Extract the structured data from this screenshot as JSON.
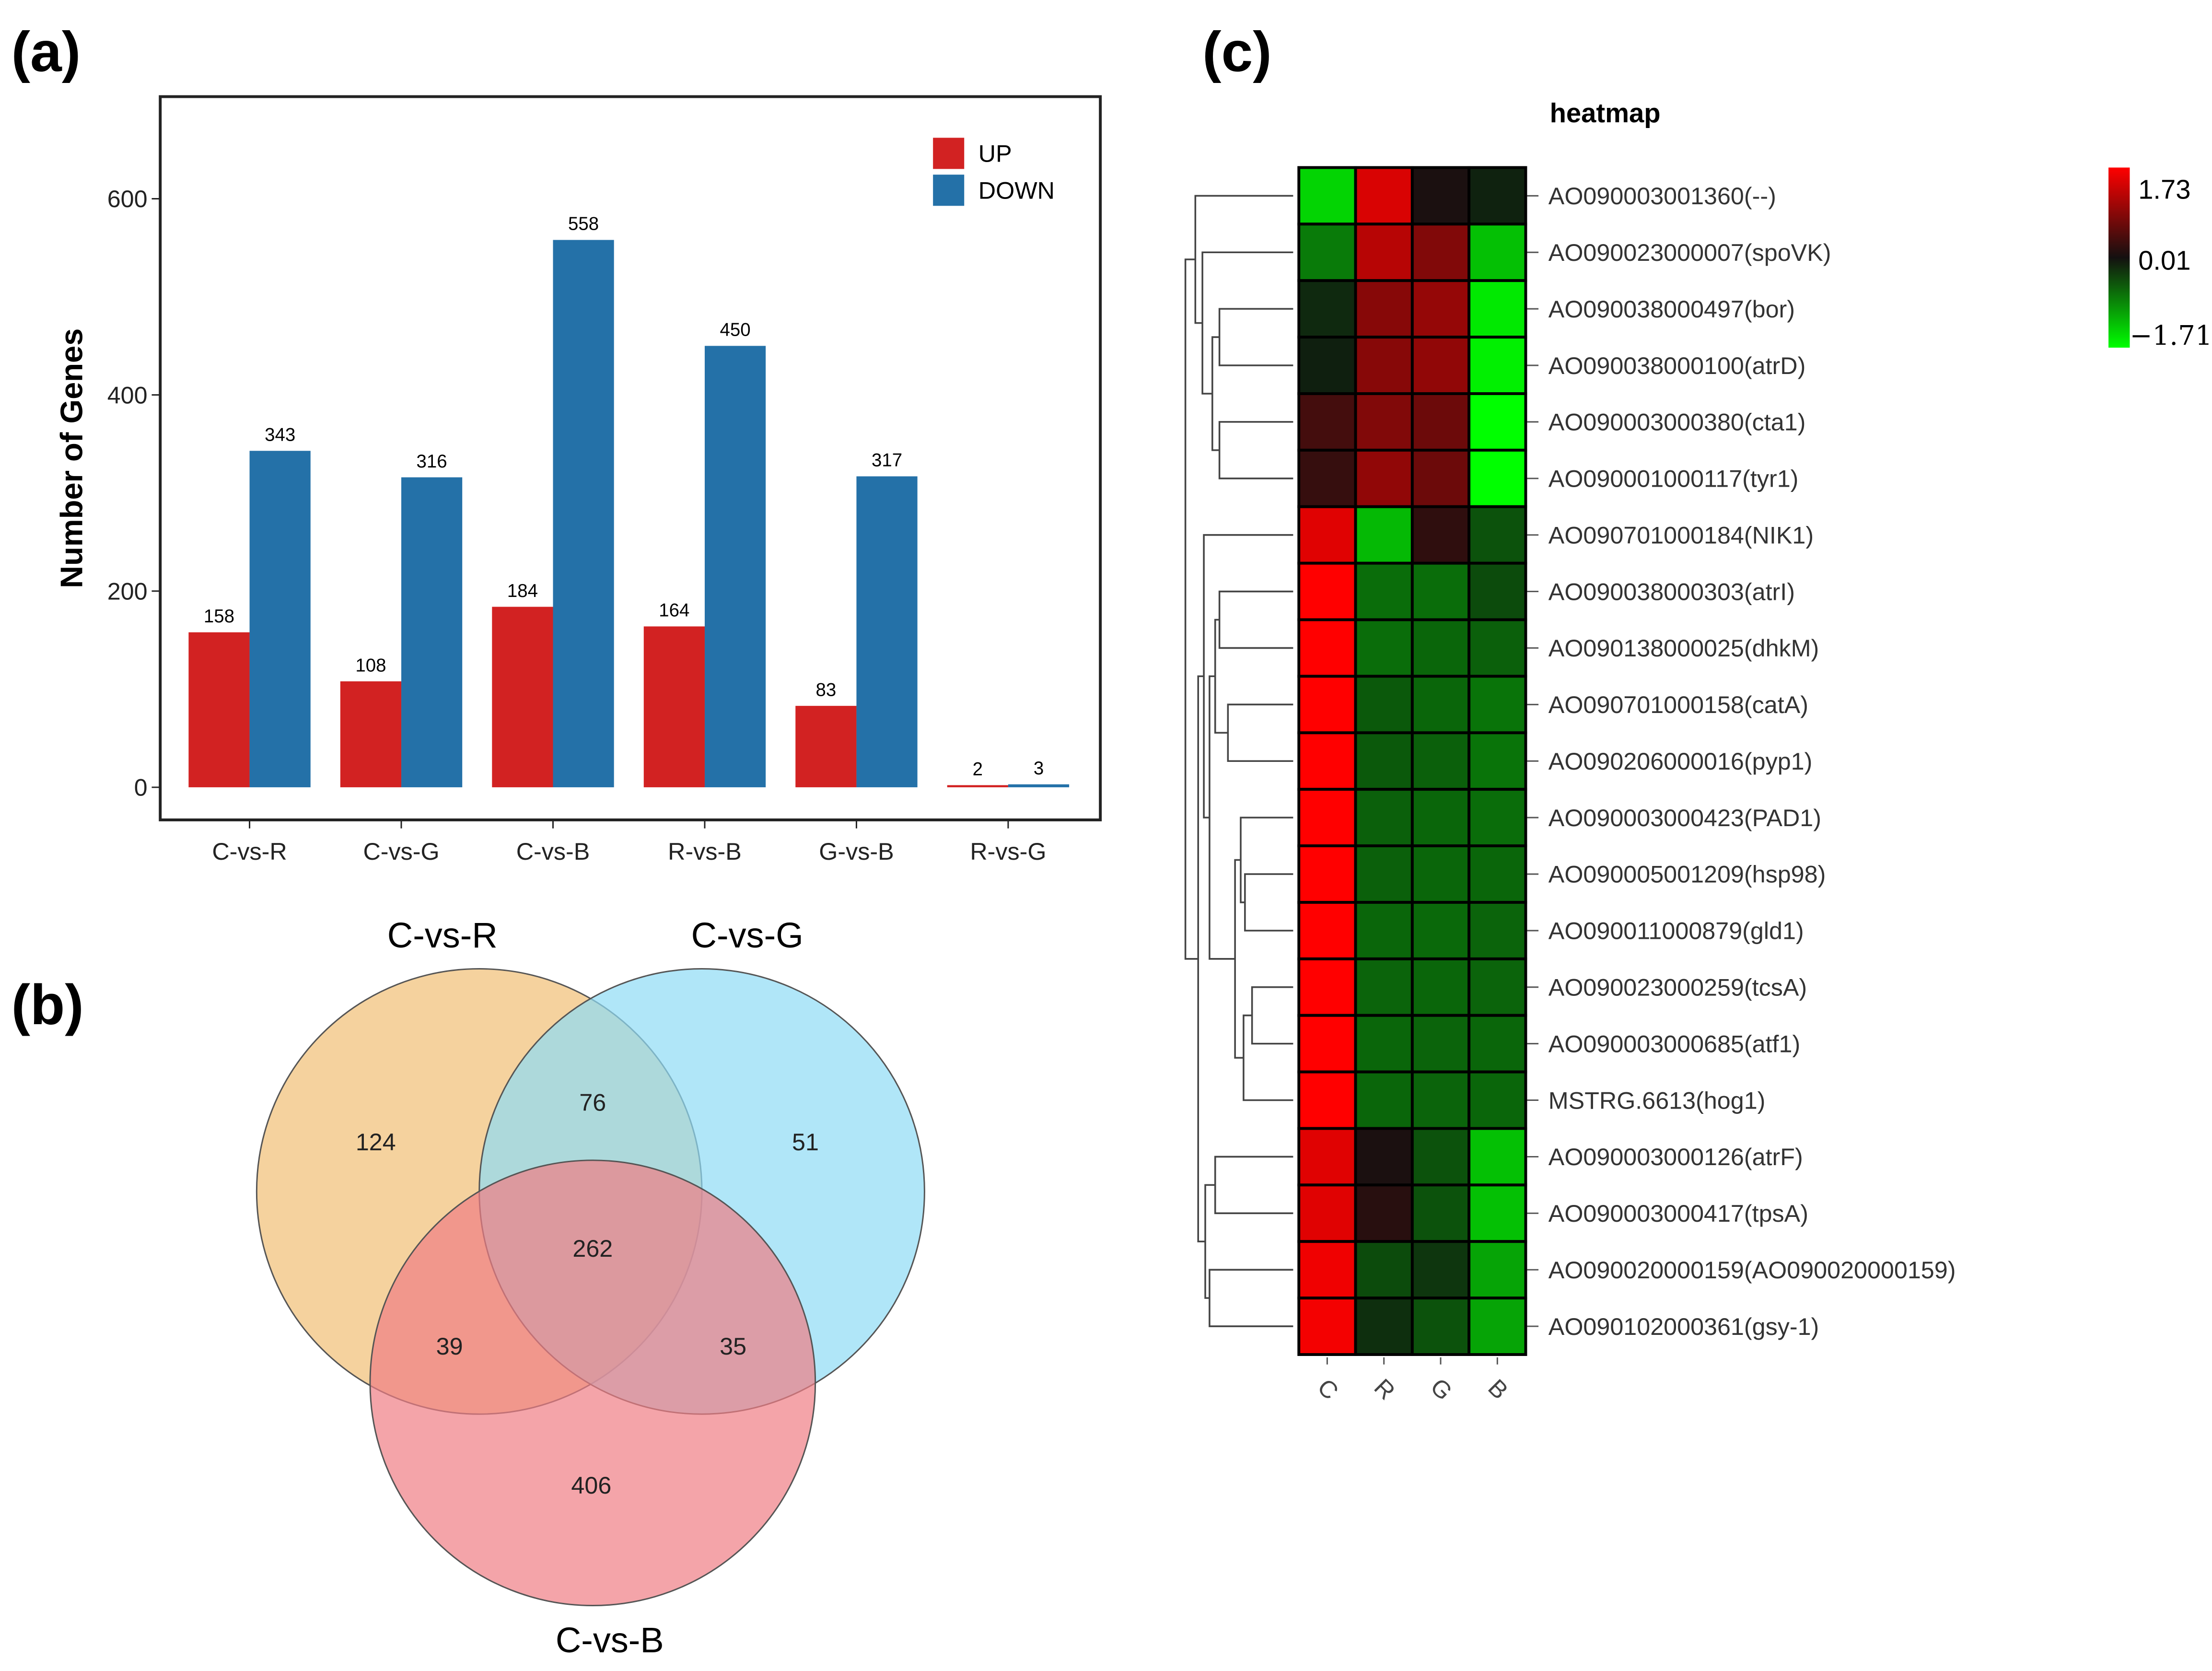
{
  "panel_labels": {
    "a": "(a)",
    "b": "(b)",
    "c": "(c)"
  },
  "chart_data": [
    {
      "type": "bar",
      "categories": [
        "C-vs-R",
        "C-vs-G",
        "C-vs-B",
        "R-vs-B",
        "G-vs-B",
        "R-vs-G"
      ],
      "series": [
        {
          "name": "UP",
          "color": "#d22222",
          "values": [
            158,
            108,
            184,
            164,
            83,
            2
          ]
        },
        {
          "name": "DOWN",
          "color": "#2471a8",
          "values": [
            343,
            316,
            558,
            450,
            317,
            3
          ]
        }
      ],
      "ylabel": "Number of Genes",
      "ylim": [
        0,
        700
      ],
      "yticks": [
        0,
        200,
        400,
        600
      ],
      "legend": "top-right",
      "grid": false
    },
    {
      "type": "venn",
      "sets": [
        {
          "name": "C-vs-R",
          "color": "#f2c37d"
        },
        {
          "name": "C-vs-G",
          "color": "#8fdcf5"
        },
        {
          "name": "C-vs-B",
          "color": "#ef7d84"
        }
      ],
      "regions": {
        "R_only": 124,
        "G_only": 51,
        "B_only": 406,
        "R_G": 76,
        "R_B": 39,
        "G_B": 35,
        "R_G_B": 262
      }
    },
    {
      "type": "heatmap",
      "title": "heatmap",
      "columns": [
        "C",
        "R",
        "G",
        "B"
      ],
      "scale": {
        "max": 1.73,
        "mid": 0.01,
        "min": -1.71,
        "max_label": "1.73",
        "mid_label": "0.01",
        "min_label": "−1.71"
      },
      "rows": [
        {
          "label": "AO090003001360(--)",
          "values": [
            -1.4,
            1.45,
            0.05,
            -0.1
          ]
        },
        {
          "label": "AO090023000007(spoVK)",
          "values": [
            -0.75,
            1.2,
            0.8,
            -1.25
          ]
        },
        {
          "label": "AO090038000497(bor)",
          "values": [
            -0.15,
            0.85,
            0.95,
            -1.55
          ]
        },
        {
          "label": "AO090038000100(atrD)",
          "values": [
            -0.08,
            0.85,
            0.92,
            -1.6
          ]
        },
        {
          "label": "AO090003000380(cta1)",
          "values": [
            0.35,
            0.8,
            0.65,
            -1.71
          ]
        },
        {
          "label": "AO090001000117(tyr1)",
          "values": [
            0.25,
            0.92,
            0.65,
            -1.71
          ]
        },
        {
          "label": "AO090701000184(NIK1)",
          "values": [
            1.5,
            -1.2,
            0.2,
            -0.45
          ]
        },
        {
          "label": "AO090038000303(atrI)",
          "values": [
            1.73,
            -0.65,
            -0.65,
            -0.4
          ]
        },
        {
          "label": "AO090138000025(dhkM)",
          "values": [
            1.73,
            -0.65,
            -0.6,
            -0.55
          ]
        },
        {
          "label": "AO090701000158(catA)",
          "values": [
            1.73,
            -0.5,
            -0.6,
            -0.7
          ]
        },
        {
          "label": "AO090206000016(pyp1)",
          "values": [
            1.73,
            -0.5,
            -0.55,
            -0.7
          ]
        },
        {
          "label": "AO090003000423(PAD1)",
          "values": [
            1.73,
            -0.55,
            -0.6,
            -0.65
          ]
        },
        {
          "label": "AO090005001209(hsp98)",
          "values": [
            1.73,
            -0.55,
            -0.6,
            -0.6
          ]
        },
        {
          "label": "AO090011000879(gld1)",
          "values": [
            1.73,
            -0.6,
            -0.62,
            -0.58
          ]
        },
        {
          "label": "AO090023000259(tcsA)",
          "values": [
            1.73,
            -0.58,
            -0.6,
            -0.58
          ]
        },
        {
          "label": "AO090003000685(atf1)",
          "values": [
            1.73,
            -0.6,
            -0.58,
            -0.6
          ]
        },
        {
          "label": "MSTRG.6613(hog1)",
          "values": [
            1.73,
            -0.6,
            -0.58,
            -0.6
          ]
        },
        {
          "label": "AO090003000126(atrF)",
          "values": [
            1.5,
            0.05,
            -0.45,
            -1.25
          ]
        },
        {
          "label": "AO090003000417(tpsA)",
          "values": [
            1.5,
            0.15,
            -0.45,
            -1.25
          ]
        },
        {
          "label": "AO090020000159(AO090020000159)",
          "values": [
            1.62,
            -0.4,
            -0.25,
            -1.05
          ]
        },
        {
          "label": "AO090102000361(gsy-1)",
          "values": [
            1.65,
            -0.2,
            -0.45,
            -1.05
          ]
        }
      ]
    }
  ]
}
